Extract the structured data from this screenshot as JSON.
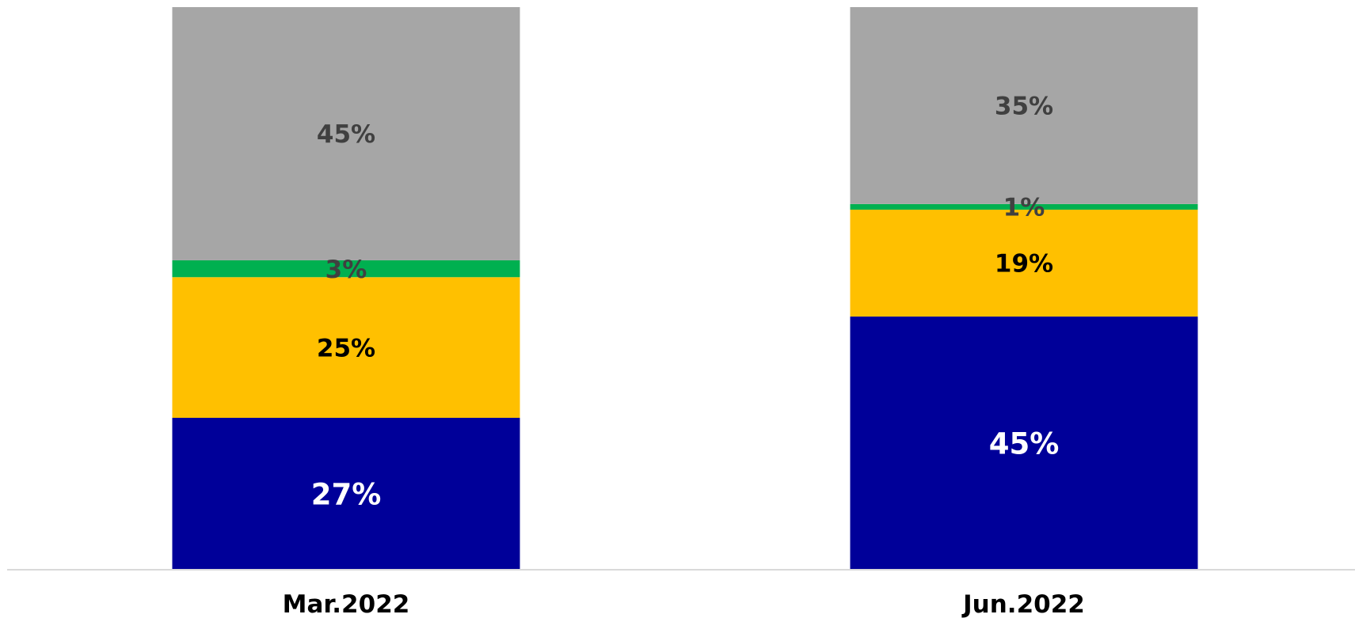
{
  "chart_data": {
    "type": "bar",
    "stacked": true,
    "title": "",
    "xlabel": "",
    "ylabel": "",
    "ylim": [
      0,
      100
    ],
    "grid": false,
    "legend": "none",
    "categories": [
      "Mar.2022",
      "Jun.2022"
    ],
    "series": [
      {
        "color": "#000099",
        "label_color": "#ffffff",
        "label_size": "large",
        "values": [
          27,
          45
        ],
        "labels": [
          "27%",
          "45%"
        ]
      },
      {
        "color": "#ffc000",
        "label_color": "#000000",
        "label_size": "medium",
        "values": [
          25,
          19
        ],
        "labels": [
          "25%",
          "19%"
        ]
      },
      {
        "color": "#00b050",
        "label_color": "#404040",
        "label_size": "medium",
        "values": [
          3,
          1
        ],
        "labels": [
          "3%",
          "1%"
        ]
      },
      {
        "color": "#a6a6a6",
        "label_color": "#404040",
        "label_size": "medium",
        "values": [
          45,
          35
        ],
        "labels": [
          "45%",
          "35%"
        ]
      }
    ]
  }
}
